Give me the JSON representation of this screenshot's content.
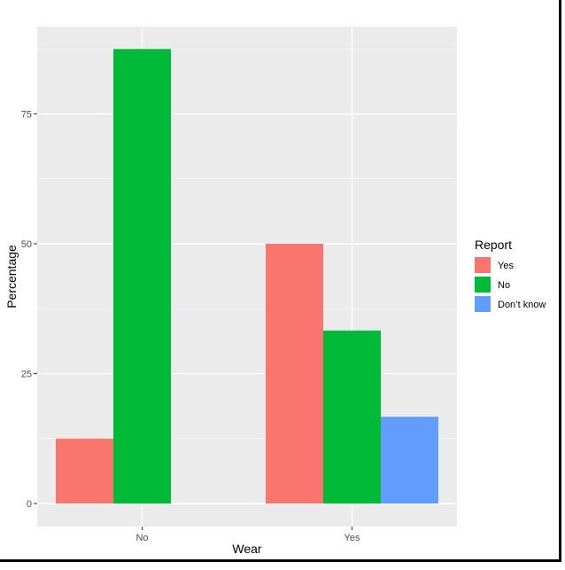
{
  "chart_data": {
    "type": "bar",
    "categories": [
      "No",
      "Yes"
    ],
    "series": [
      {
        "name": "Yes",
        "color": "#F8766D",
        "values": [
          12.5,
          50.0
        ]
      },
      {
        "name": "No",
        "color": "#00BA38",
        "values": [
          87.5,
          33.3
        ]
      },
      {
        "name": "Don’t know",
        "color": "#619CFF",
        "values": [
          null,
          16.7
        ]
      }
    ],
    "xlabel": "Wear",
    "ylabel": "Percentage",
    "ylim": [
      0,
      90
    ],
    "yticks": [
      0,
      25,
      50,
      75
    ],
    "legend": {
      "title": "Report",
      "position": "right"
    },
    "grid": true,
    "panel_background": "#EBEBEB",
    "grid_color": "#FFFFFF"
  }
}
